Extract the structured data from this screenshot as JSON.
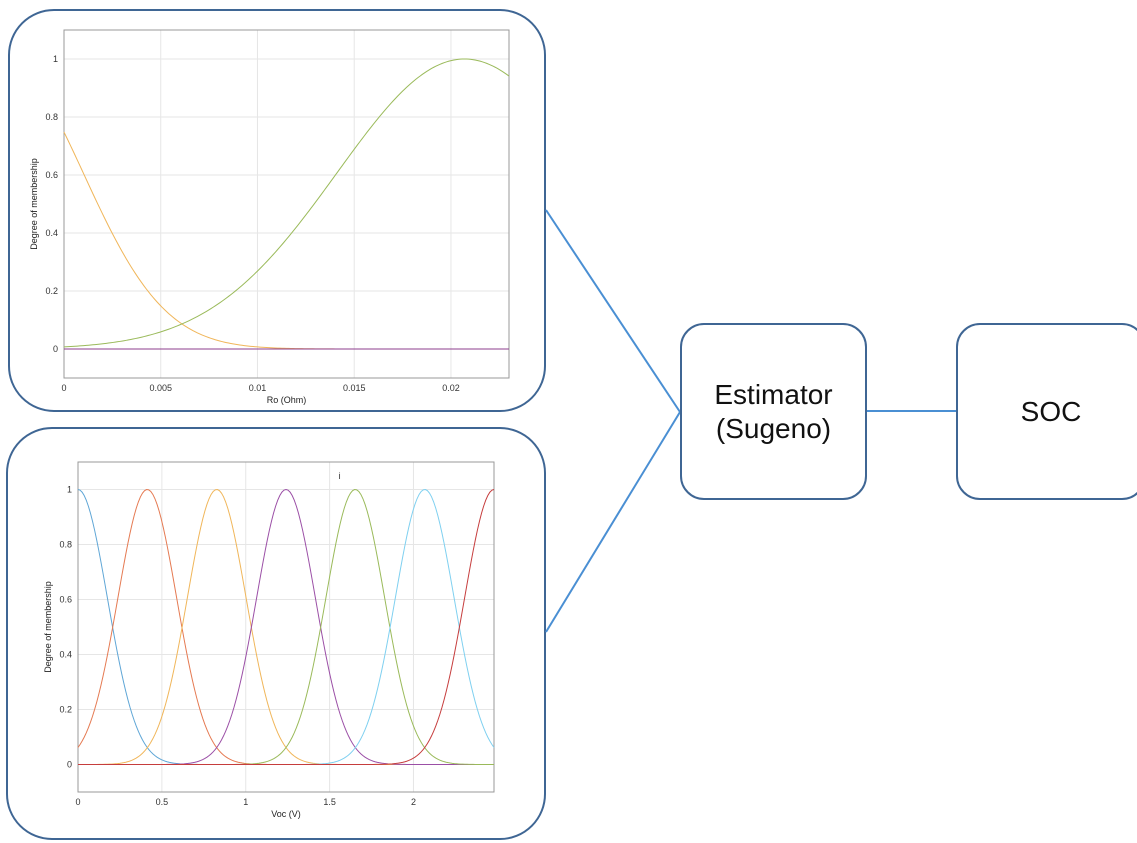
{
  "chart_data": [
    {
      "type": "line",
      "xlabel": "Ro (Ohm)",
      "ylabel": "Degree of membership",
      "xlim": [
        0,
        0.023
      ],
      "ylim": [
        -0.1,
        1.1
      ],
      "xticks": [
        "0",
        "0.005",
        "0.01",
        "0.015",
        "0.02"
      ],
      "yticks": [
        "0",
        "0.2",
        "0.4",
        "0.6",
        "0.8",
        "1"
      ],
      "grid": true,
      "series": [
        {
          "color": "#f0b65a",
          "shape": "gauss",
          "center": -0.0032,
          "sigma": 0.0042
        },
        {
          "color": "#9aba5a",
          "shape": "gauss",
          "center": 0.0207,
          "sigma": 0.0066
        },
        {
          "color": "#8e3d8e",
          "shape": "flat",
          "value": 0
        }
      ]
    },
    {
      "type": "line",
      "xlabel": "Voc (V)",
      "ylabel": "Degree of membership",
      "xlim": [
        0,
        2.48
      ],
      "ylim": [
        -0.1,
        1.1
      ],
      "xticks": [
        "0",
        "0.5",
        "1",
        "1.5",
        "2"
      ],
      "yticks": [
        "0",
        "0.2",
        "0.4",
        "0.6",
        "0.8",
        "1"
      ],
      "grid": true,
      "annotation": "i",
      "series": [
        {
          "color": "#5fa6d6",
          "shape": "gauss",
          "center": 0.0,
          "sigma": 0.175
        },
        {
          "color": "#e57a52",
          "shape": "gauss",
          "center": 0.413,
          "sigma": 0.175
        },
        {
          "color": "#f0b65a",
          "shape": "gauss",
          "center": 0.827,
          "sigma": 0.175
        },
        {
          "color": "#9b4fa6",
          "shape": "gauss",
          "center": 1.24,
          "sigma": 0.175
        },
        {
          "color": "#9aba5a",
          "shape": "gauss",
          "center": 1.653,
          "sigma": 0.175
        },
        {
          "color": "#7fd0f0",
          "shape": "gauss",
          "center": 2.067,
          "sigma": 0.175
        },
        {
          "color": "#c63d3d",
          "shape": "gauss",
          "center": 2.48,
          "sigma": 0.175
        }
      ]
    }
  ],
  "diagram": {
    "estimator_line1": "Estimator",
    "estimator_line2": "(Sugeno)",
    "soc_label": "SOC",
    "connector_color": "#4a8fd3"
  }
}
